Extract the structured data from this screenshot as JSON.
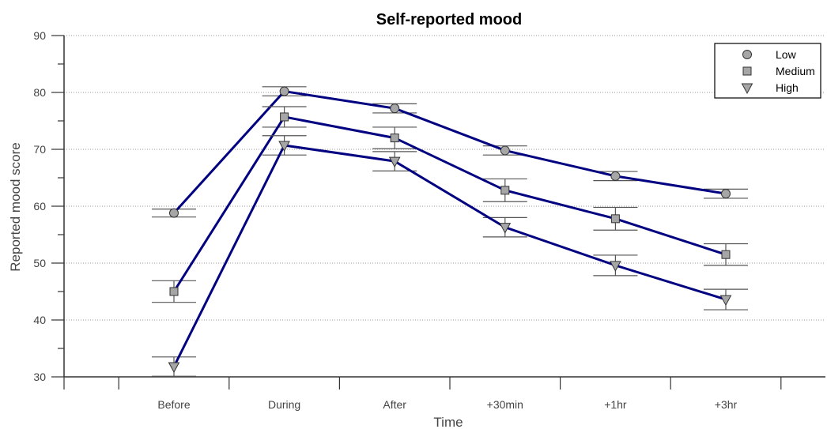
{
  "chart_data": {
    "type": "line",
    "title": "Self-reported mood",
    "xlabel": "Time",
    "ylabel": "Reported mood score",
    "categories": [
      "Before",
      "During",
      "After",
      "+30min",
      "+1hr",
      "+3hr"
    ],
    "ylim": [
      30,
      90
    ],
    "yticks": [
      30,
      40,
      50,
      60,
      70,
      80,
      90
    ],
    "grid": "horizontal-dotted",
    "legend_position": "top-right",
    "line_color": "#000080",
    "marker_color": "#a6a6a6",
    "series": [
      {
        "name": "Low",
        "marker": "circle",
        "values": [
          58.8,
          80.2,
          77.2,
          69.8,
          65.3,
          62.2
        ],
        "error": [
          0.7,
          0.8,
          0.8,
          0.8,
          0.8,
          0.8
        ]
      },
      {
        "name": "Medium",
        "marker": "square",
        "values": [
          45.0,
          75.7,
          72.0,
          62.8,
          57.8,
          51.5
        ],
        "error": [
          1.9,
          1.8,
          1.9,
          2.0,
          2.0,
          1.9
        ]
      },
      {
        "name": "High",
        "marker": "triangle-down",
        "values": [
          31.8,
          70.7,
          67.9,
          56.3,
          49.6,
          43.6
        ],
        "error": [
          1.7,
          1.7,
          1.7,
          1.7,
          1.8,
          1.8
        ]
      }
    ]
  }
}
